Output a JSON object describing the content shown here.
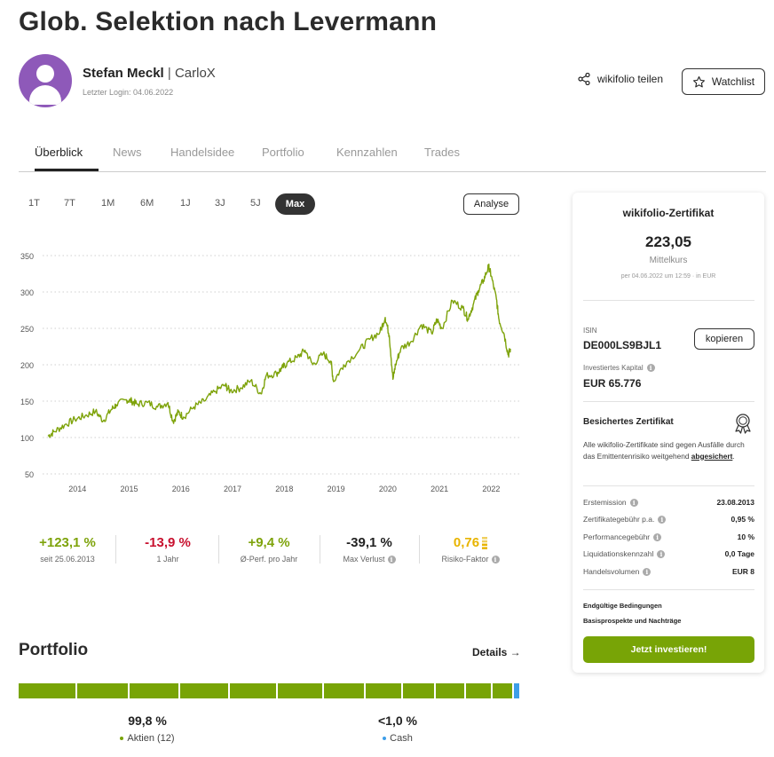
{
  "page": {
    "title": "Glob. Selektion nach Levermann"
  },
  "trader": {
    "name": "Stefan Meckl",
    "separator": "|",
    "nickname": "CarloX",
    "last_login": "Letzter Login: 04.06.2022"
  },
  "actions": {
    "share_label": "wikifolio teilen",
    "watchlist_label": "Watchlist"
  },
  "tabs": [
    {
      "label": "Überblick",
      "active": true
    },
    {
      "label": "News"
    },
    {
      "label": "Handelsidee"
    },
    {
      "label": "Portfolio"
    },
    {
      "label": "Kennzahlen"
    },
    {
      "label": "Trades"
    }
  ],
  "ranges": [
    "1T",
    "7T",
    "1M",
    "6M",
    "1J",
    "3J",
    "5J",
    "Max"
  ],
  "selected_range": "Max",
  "analyse_label": "Analyse",
  "chart_data": {
    "type": "line",
    "x_ticks": [
      "2014",
      "2015",
      "2016",
      "2017",
      "2018",
      "2019",
      "2020",
      "2021",
      "2022"
    ],
    "y_ticks": [
      50,
      100,
      150,
      200,
      250,
      300,
      350
    ],
    "ylim": [
      50,
      350
    ],
    "grid": "horizontal-dotted",
    "color": "#7ea30b",
    "series": [
      {
        "x": [
          2013.48,
          2013.6,
          2013.8,
          2014.0,
          2014.2,
          2014.4,
          2014.55,
          2014.7,
          2014.8,
          2015.0,
          2015.1,
          2015.2,
          2015.4,
          2015.6,
          2015.8,
          2015.9,
          2016.0,
          2016.1,
          2016.3,
          2016.5,
          2016.7,
          2016.9,
          2017.0,
          2017.2,
          2017.4,
          2017.6,
          2017.7,
          2017.9,
          2018.0,
          2018.1,
          2018.3,
          2018.45,
          2018.6,
          2018.8,
          2018.95,
          2019.0,
          2019.2,
          2019.5,
          2019.7,
          2019.9,
          2020.0,
          2020.08,
          2020.15,
          2020.2,
          2020.3,
          2020.5,
          2020.7,
          2020.9,
          2021.0,
          2021.1,
          2021.3,
          2021.5,
          2021.6,
          2021.7,
          2021.8,
          2021.9,
          2022.0,
          2022.05,
          2022.15,
          2022.2,
          2022.3,
          2022.38,
          2022.42
        ],
        "values": [
          102,
          108,
          117,
          125,
          130,
          136,
          123,
          138,
          145,
          152,
          150,
          146,
          148,
          142,
          148,
          122,
          135,
          128,
          142,
          150,
          163,
          172,
          164,
          168,
          178,
          160,
          185,
          188,
          195,
          202,
          210,
          220,
          200,
          215,
          205,
          177,
          200,
          220,
          235,
          245,
          265,
          240,
          180,
          200,
          222,
          232,
          255,
          243,
          262,
          250,
          288,
          278,
          263,
          282,
          302,
          316,
          335,
          322,
          290,
          262,
          242,
          213,
          222
        ]
      }
    ]
  },
  "kpis": [
    {
      "value": "+123,1 %",
      "label": "seit 25.06.2013",
      "color": "#7ea30b"
    },
    {
      "value": "-13,9 %",
      "label": "1 Jahr",
      "color": "#c8102e"
    },
    {
      "value": "+9,4 %",
      "label": "Ø-Perf. pro Jahr",
      "color": "#7ea30b"
    },
    {
      "value": "-39,1 %",
      "label": "Max Verlust",
      "color": "#222222",
      "info": true
    },
    {
      "value": "0,76",
      "label": "Risiko-Faktor",
      "color": "#e8b400",
      "info": true
    }
  ],
  "portfolio": {
    "heading": "Portfolio",
    "details_label": "Details →",
    "segments": [
      66,
      59,
      57,
      56,
      54,
      52,
      47,
      42,
      37,
      34,
      30,
      24
    ],
    "allocations": [
      {
        "percent": "99,8 %",
        "label": "Aktien (12)",
        "color": "#78a406"
      },
      {
        "percent": "<1,0 %",
        "label": "Cash",
        "color": "#3d9ee8"
      }
    ]
  },
  "certificate": {
    "title": "wikifolio-Zertifikat",
    "price": "223,05",
    "price_label": "Mittelkurs",
    "timestamp": "per 04.06.2022 um 12:59 · in EUR",
    "isin_label": "ISIN",
    "isin": "DE000LS9BJL1",
    "copy_label": "kopieren",
    "capital_label": "Investiertes Kapital",
    "capital": "EUR 65.776",
    "secured_title": "Besichertes Zertifikat",
    "secured_text": "Alle wikifolio-Zertifikate sind gegen Ausfälle durch das Emittentenrisiko weitgehend",
    "secured_link": "abgesichert",
    "secured_end": ".",
    "details": [
      {
        "label": "Erstemission",
        "value": "23.08.2013"
      },
      {
        "label": "Zertifikategebühr p.a.",
        "value": "0,95 %"
      },
      {
        "label": "Performancegebühr",
        "value": "10 %"
      },
      {
        "label": "Liquidationskennzahl",
        "value": "0,0 Tage"
      },
      {
        "label": "Handelsvolumen",
        "value": "EUR 8"
      }
    ],
    "links": [
      "Endgültige Bedingungen",
      "Basisprospekte und Nachträge"
    ],
    "invest_label": "Jetzt investieren!"
  }
}
